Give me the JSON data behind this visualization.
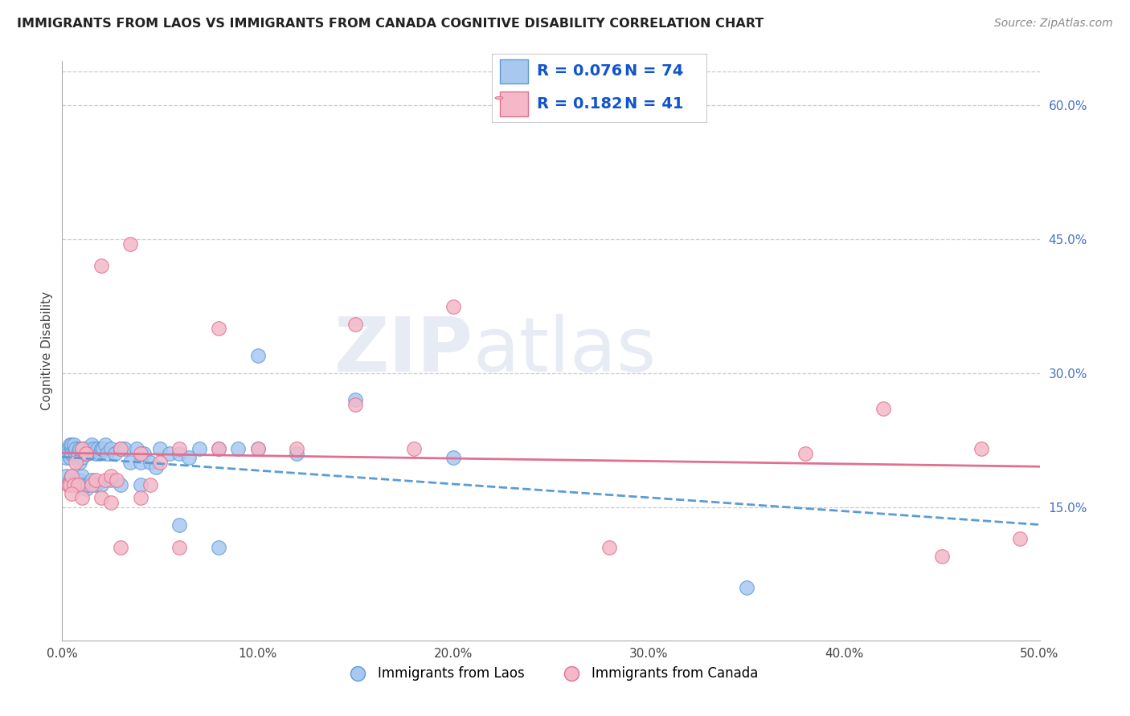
{
  "title": "IMMIGRANTS FROM LAOS VS IMMIGRANTS FROM CANADA COGNITIVE DISABILITY CORRELATION CHART",
  "source": "Source: ZipAtlas.com",
  "ylabel": "Cognitive Disability",
  "xlim": [
    0.0,
    0.5
  ],
  "ylim": [
    0.0,
    0.65
  ],
  "background_color": "#ffffff",
  "watermark_zip": "ZIP",
  "watermark_atlas": "atlas",
  "r1": "0.076",
  "n1": "74",
  "r2": "0.182",
  "n2": "41",
  "legend_label1": "Immigrants from Laos",
  "legend_label2": "Immigrants from Canada",
  "color_blue_fill": "#A8C8F0",
  "color_blue_edge": "#5B9BD5",
  "color_pink_fill": "#F4B8C8",
  "color_pink_edge": "#E07090",
  "color_blue_line": "#5B9BD5",
  "color_pink_line": "#E07090",
  "grid_color": "#cccccc",
  "title_color": "#222222",
  "tick_color_right": "#4472C4",
  "legend_text_color": "#1155CC",
  "laos_x": [
    0.002,
    0.003,
    0.003,
    0.004,
    0.004,
    0.005,
    0.005,
    0.005,
    0.006,
    0.006,
    0.007,
    0.007,
    0.008,
    0.008,
    0.009,
    0.009,
    0.01,
    0.01,
    0.011,
    0.012,
    0.013,
    0.014,
    0.015,
    0.016,
    0.017,
    0.018,
    0.019,
    0.02,
    0.021,
    0.022,
    0.023,
    0.025,
    0.027,
    0.03,
    0.032,
    0.035,
    0.038,
    0.04,
    0.042,
    0.045,
    0.048,
    0.05,
    0.055,
    0.06,
    0.065,
    0.07,
    0.08,
    0.09,
    0.1,
    0.12,
    0.002,
    0.003,
    0.004,
    0.005,
    0.006,
    0.007,
    0.008,
    0.009,
    0.01,
    0.011,
    0.012,
    0.013,
    0.015,
    0.017,
    0.02,
    0.025,
    0.03,
    0.04,
    0.06,
    0.08,
    0.1,
    0.15,
    0.2,
    0.35
  ],
  "laos_y": [
    0.205,
    0.215,
    0.21,
    0.22,
    0.205,
    0.215,
    0.22,
    0.21,
    0.215,
    0.22,
    0.21,
    0.215,
    0.205,
    0.21,
    0.2,
    0.215,
    0.205,
    0.215,
    0.215,
    0.21,
    0.21,
    0.215,
    0.22,
    0.215,
    0.21,
    0.215,
    0.21,
    0.215,
    0.215,
    0.22,
    0.21,
    0.215,
    0.21,
    0.215,
    0.215,
    0.2,
    0.215,
    0.2,
    0.21,
    0.2,
    0.195,
    0.215,
    0.21,
    0.21,
    0.205,
    0.215,
    0.215,
    0.215,
    0.215,
    0.21,
    0.185,
    0.175,
    0.18,
    0.185,
    0.175,
    0.18,
    0.175,
    0.18,
    0.185,
    0.175,
    0.17,
    0.175,
    0.18,
    0.175,
    0.175,
    0.18,
    0.175,
    0.175,
    0.13,
    0.105,
    0.32,
    0.27,
    0.205,
    0.06
  ],
  "canada_x": [
    0.003,
    0.004,
    0.005,
    0.006,
    0.007,
    0.008,
    0.01,
    0.012,
    0.015,
    0.017,
    0.02,
    0.022,
    0.025,
    0.028,
    0.03,
    0.035,
    0.04,
    0.045,
    0.05,
    0.06,
    0.08,
    0.1,
    0.12,
    0.15,
    0.18,
    0.02,
    0.025,
    0.03,
    0.04,
    0.06,
    0.08,
    0.15,
    0.2,
    0.28,
    0.38,
    0.42,
    0.45,
    0.47,
    0.49,
    0.005,
    0.01
  ],
  "canada_y": [
    0.175,
    0.175,
    0.185,
    0.175,
    0.2,
    0.175,
    0.215,
    0.21,
    0.175,
    0.18,
    0.42,
    0.18,
    0.185,
    0.18,
    0.215,
    0.445,
    0.21,
    0.175,
    0.2,
    0.215,
    0.35,
    0.215,
    0.215,
    0.355,
    0.215,
    0.16,
    0.155,
    0.105,
    0.16,
    0.105,
    0.215,
    0.265,
    0.375,
    0.105,
    0.21,
    0.26,
    0.095,
    0.215,
    0.115,
    0.165,
    0.16
  ]
}
